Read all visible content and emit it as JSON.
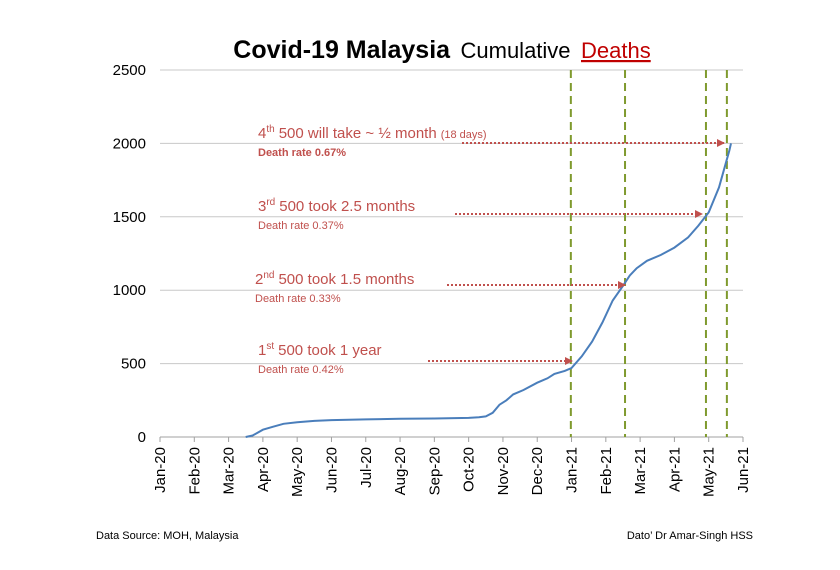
{
  "chart_data": {
    "type": "line",
    "title": {
      "bold": "Covid-19 Malaysia",
      "normal": "Cumulative",
      "highlight": "Deaths"
    },
    "x": [
      2.5,
      2.7,
      3.0,
      3.3,
      3.6,
      4.0,
      4.5,
      5.0,
      6.0,
      7.0,
      8.0,
      9.0,
      9.3,
      9.5,
      9.7,
      9.9,
      10.1,
      10.3,
      10.6,
      11.0,
      11.3,
      11.5,
      11.8,
      12.0,
      12.3,
      12.6,
      12.9,
      13.2,
      13.5,
      13.7,
      13.9,
      14.2,
      14.6,
      15.0,
      15.4,
      15.7,
      16.0,
      16.3,
      16.6,
      16.65
    ],
    "values": [
      0,
      10,
      50,
      70,
      90,
      100,
      110,
      115,
      120,
      124,
      126,
      130,
      135,
      140,
      165,
      220,
      250,
      290,
      320,
      370,
      400,
      430,
      450,
      470,
      550,
      650,
      780,
      930,
      1030,
      1100,
      1150,
      1200,
      1240,
      1290,
      1360,
      1440,
      1530,
      1700,
      1950,
      2000
    ],
    "color": "#4a7ebb",
    "xlim": [
      0,
      17
    ],
    "xticks": [
      {
        "value": 0,
        "label": "Jan-20"
      },
      {
        "value": 1,
        "label": "Feb-20"
      },
      {
        "value": 2,
        "label": "Mar-20"
      },
      {
        "value": 3,
        "label": "Apr-20"
      },
      {
        "value": 4,
        "label": "May-20"
      },
      {
        "value": 5,
        "label": "Jun-20"
      },
      {
        "value": 6,
        "label": "Jul-20"
      },
      {
        "value": 7,
        "label": "Aug-20"
      },
      {
        "value": 8,
        "label": "Sep-20"
      },
      {
        "value": 9,
        "label": "Oct-20"
      },
      {
        "value": 10,
        "label": "Nov-20"
      },
      {
        "value": 11,
        "label": "Dec-20"
      },
      {
        "value": 12,
        "label": "Jan-21"
      },
      {
        "value": 13,
        "label": "Feb-21"
      },
      {
        "value": 14,
        "label": "Mar-21"
      },
      {
        "value": 15,
        "label": "Apr-21"
      },
      {
        "value": 16,
        "label": "May-21"
      },
      {
        "value": 17,
        "label": "Jun-21"
      }
    ],
    "ylim": [
      0,
      2500
    ],
    "yticks": [
      0,
      500,
      1000,
      1500,
      2000,
      2500
    ],
    "grid": true,
    "reference_lines": [
      11.98,
      13.56,
      15.92,
      16.53
    ],
    "reference_color": "#7f9a2e",
    "annotations": [
      {
        "lead": "4",
        "sup": "th",
        "rest": "500 will take ~ ½ month",
        "note": "(18 days)",
        "rate": "Death rate 0.67%"
      },
      {
        "lead": "3",
        "sup": "rd",
        "rest": "500 took 2.5 months",
        "rate": "Death rate 0.37%"
      },
      {
        "lead": "2",
        "sup": "nd",
        "rest": "500 took 1.5 months",
        "rate": "Death rate 0.33%"
      },
      {
        "lead": "1",
        "sup": "st",
        "rest": "500 took 1 year",
        "rate": "Death rate 0.42%"
      }
    ],
    "source": "Data Source: MOH, Malaysia",
    "credit": "Dato’ Dr Amar-Singh HSS"
  }
}
